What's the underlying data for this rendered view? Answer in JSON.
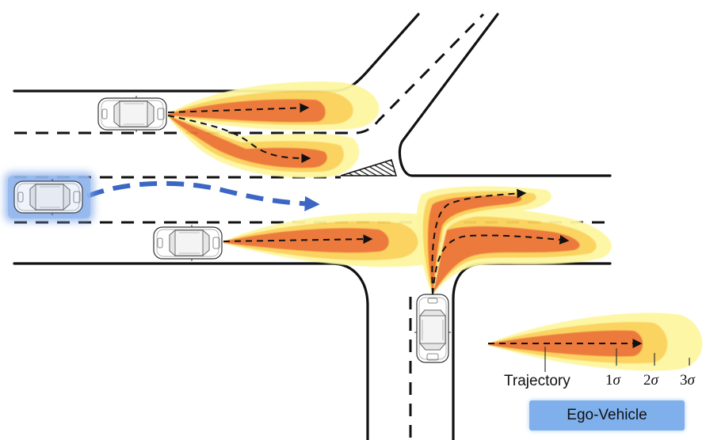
{
  "legend": {
    "trajectory": "Trajectory",
    "sigma1_num": "1",
    "sigma2_num": "2",
    "sigma3_num": "3",
    "sigma_symbol": "σ",
    "ego_vehicle": "Ego-Vehicle"
  },
  "colors": {
    "road_line": "#111111",
    "sigma1_fill": "#ec7234",
    "sigma2_fill": "#fad15a",
    "sigma3_fill": "#fdf6a0",
    "ego_path": "#3b66c4",
    "ego_glow": "#7ea6e8",
    "car_body": "#ffffff"
  }
}
